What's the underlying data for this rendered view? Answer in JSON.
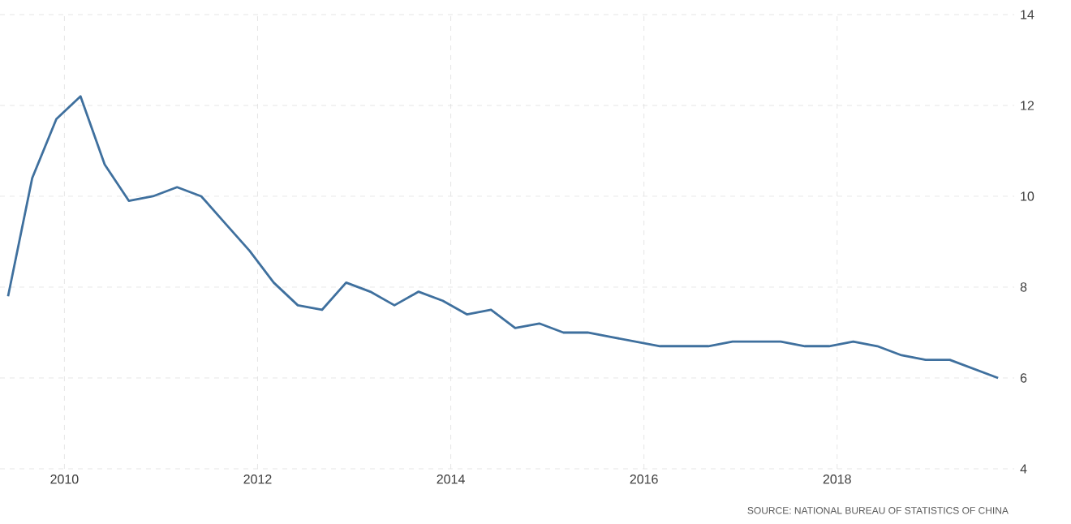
{
  "chart_data": {
    "type": "line",
    "x": [
      "2009-06",
      "2009-09",
      "2009-12",
      "2010-03",
      "2010-06",
      "2010-09",
      "2010-12",
      "2011-03",
      "2011-06",
      "2011-09",
      "2011-12",
      "2012-03",
      "2012-06",
      "2012-09",
      "2012-12",
      "2013-03",
      "2013-06",
      "2013-09",
      "2013-12",
      "2014-03",
      "2014-06",
      "2014-09",
      "2014-12",
      "2015-03",
      "2015-06",
      "2015-09",
      "2015-12",
      "2016-03",
      "2016-06",
      "2016-09",
      "2016-12",
      "2017-03",
      "2017-06",
      "2017-09",
      "2017-12",
      "2018-03",
      "2018-06",
      "2018-09",
      "2018-12",
      "2019-03",
      "2019-06",
      "2019-09"
    ],
    "series": [
      {
        "color": "#3f709e",
        "values": [
          7.8,
          10.4,
          11.7,
          12.2,
          10.7,
          9.9,
          10.0,
          10.2,
          10.0,
          9.4,
          8.8,
          8.1,
          7.6,
          7.5,
          8.1,
          7.9,
          7.6,
          7.9,
          7.7,
          7.4,
          7.5,
          7.1,
          7.2,
          7.0,
          7.0,
          6.9,
          6.8,
          6.7,
          6.7,
          6.7,
          6.8,
          6.8,
          6.8,
          6.7,
          6.7,
          6.8,
          6.7,
          6.5,
          6.4,
          6.4,
          6.2,
          6.0
        ]
      }
    ],
    "xlim": [
      "2009-05",
      "2019-11"
    ],
    "xticks": [
      "2010",
      "2012",
      "2014",
      "2016",
      "2018"
    ],
    "ylim": [
      4,
      14
    ],
    "yticks": [
      4,
      6,
      8,
      10,
      12,
      14
    ],
    "grid": true,
    "line_style": "solid",
    "marker": "none",
    "annotations": [
      "SOURCE: NATIONAL BUREAU OF STATISTICS OF CHINA"
    ]
  }
}
